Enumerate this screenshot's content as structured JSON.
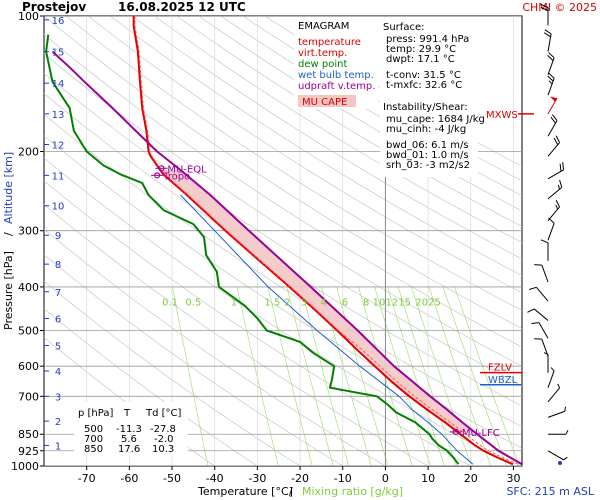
{
  "header": {
    "station": "Prostejov",
    "datetime": "16.08.2025 12 UTC",
    "credit": "CHMI © 2025"
  },
  "legend": {
    "title": "EMAGRAM",
    "items": [
      {
        "label": "temperature",
        "color": "#e00000"
      },
      {
        "label": "virt.temp.",
        "color": "#e00000"
      },
      {
        "label": "dew point",
        "color": "#008000"
      },
      {
        "label": "wet bulb temp.",
        "color": "#1f5fd0"
      },
      {
        "label": "udpraft v.temp.",
        "color": "#990099"
      }
    ],
    "cape_label": "MU CAPE",
    "cape_fill": "#f4c7c7"
  },
  "indices": {
    "surface_title": "Surface:",
    "press": "press: 991.4 hPa",
    "temp": "temp: 29.9 °C",
    "dwpt": "dwpt: 17.1 °C",
    "tconv": "t-conv: 31.5 °C",
    "tmxfc": "t-mxfc: 32.6 °C",
    "instability_title": "Instability/Shear:",
    "mu_cape": "mu_cape: 1684 J/kg",
    "mu_cinh": "mu_cinh: -4 J/kg",
    "bwd_06": "bwd_06: 6.1 m/s",
    "bwd_01": "bwd_01: 1.0 m/s",
    "srh_03": "srh_03: -3 m2/s2"
  },
  "table": {
    "headers": [
      "p [hPa]",
      "T",
      "Td [°C]"
    ],
    "rows": [
      [
        "500",
        "-11.3",
        "-27.8"
      ],
      [
        "700",
        "5.6",
        "-2.0"
      ],
      [
        "850",
        "17.6",
        "10.3"
      ]
    ]
  },
  "levels": {
    "tropo": "Tropo",
    "mu_eql": "MU-EQL",
    "mu_lfc": "MU-LFC",
    "fzlv": "FZLV",
    "wbzl": "WBZL",
    "mxws": "MXWS"
  },
  "axes": {
    "xlabel_temp": "Temperature [°C]",
    "xlabel_sep": "/",
    "xlabel_mix": "Mixing ratio [g/kg]",
    "ylabel_press": "Pressure [hPa]",
    "ylabel_sep": "/",
    "ylabel_alt": "Altitude [km]",
    "sfc": "SFC: 215 m ASL"
  },
  "chart_data": {
    "type": "line",
    "title": "EMAGRAM",
    "xlabel": "Temperature [°C] / Mixing ratio [g/kg]",
    "ylabel": "Pressure [hPa] / Altitude [km]",
    "xlim": [
      -80,
      32
    ],
    "ylim": [
      1000,
      100
    ],
    "y_scale": "log",
    "x_ticks": [
      -70,
      -60,
      -50,
      -40,
      -30,
      -20,
      -10,
      0,
      10,
      20,
      30
    ],
    "p_ticks": [
      100,
      200,
      300,
      400,
      500,
      600,
      700,
      850,
      925,
      1000
    ],
    "altitude_ticks_km": [
      1,
      2,
      3,
      4,
      5,
      6,
      7,
      8,
      9,
      10,
      11,
      12,
      13,
      14,
      15,
      16
    ],
    "altitude_pressures": [
      900,
      795,
      700,
      615,
      540,
      470,
      410,
      356,
      307,
      264,
      226,
      193,
      165,
      141,
      120,
      102
    ],
    "mixing_ratio_labels": [
      "0.1",
      "0.5",
      "1",
      "1.5",
      "2",
      "3",
      "4",
      "6",
      "8",
      "10",
      "12",
      "15",
      "20",
      "25"
    ],
    "mixing_ratio_label_temps": [
      -50.5,
      -45,
      -35.5,
      -26.5,
      -23,
      -19,
      -14.5,
      -9.5,
      -4.5,
      -1.5,
      1.5,
      4.5,
      8.5,
      11.5
    ],
    "mixing_ratio_label_pressure": 440,
    "series": [
      {
        "name": "temperature",
        "color": "#e00000",
        "points": [
          [
            991,
            29.9
          ],
          [
            960,
            26.5
          ],
          [
            925,
            23.0
          ],
          [
            900,
            21.0
          ],
          [
            850,
            17.6
          ],
          [
            800,
            14.0
          ],
          [
            750,
            9.8
          ],
          [
            700,
            5.6
          ],
          [
            650,
            1.5
          ],
          [
            600,
            -2.5
          ],
          [
            550,
            -6.8
          ],
          [
            500,
            -11.3
          ],
          [
            450,
            -16.5
          ],
          [
            400,
            -22.5
          ],
          [
            350,
            -29.5
          ],
          [
            300,
            -37.5
          ],
          [
            250,
            -46.5
          ],
          [
            225,
            -52.0
          ],
          [
            215,
            -53.5
          ],
          [
            205,
            -55.0
          ],
          [
            200,
            -55.5
          ],
          [
            180,
            -56.0
          ],
          [
            160,
            -57.0
          ],
          [
            140,
            -57.5
          ],
          [
            120,
            -58.0
          ],
          [
            105,
            -59.0
          ],
          [
            100,
            -59.0
          ]
        ]
      },
      {
        "name": "dew point",
        "color": "#008000",
        "points": [
          [
            991,
            17.1
          ],
          [
            960,
            16.0
          ],
          [
            925,
            14.5
          ],
          [
            900,
            12.5
          ],
          [
            870,
            11.0
          ],
          [
            850,
            10.3
          ],
          [
            800,
            7.0
          ],
          [
            760,
            2.5
          ],
          [
            730,
            0.5
          ],
          [
            700,
            -2.0
          ],
          [
            670,
            -13.0
          ],
          [
            640,
            -12.5
          ],
          [
            600,
            -12.0
          ],
          [
            560,
            -17.0
          ],
          [
            530,
            -20.0
          ],
          [
            500,
            -27.8
          ],
          [
            470,
            -30.0
          ],
          [
            440,
            -33.0
          ],
          [
            400,
            -39.0
          ],
          [
            370,
            -39.5
          ],
          [
            340,
            -42.0
          ],
          [
            310,
            -42.5
          ],
          [
            290,
            -45.0
          ],
          [
            270,
            -52.0
          ],
          [
            250,
            -55.5
          ],
          [
            235,
            -57.0
          ],
          [
            225,
            -62.0
          ],
          [
            215,
            -66.0
          ],
          [
            200,
            -70.0
          ],
          [
            180,
            -73.0
          ],
          [
            160,
            -74.0
          ],
          [
            140,
            -78.0
          ],
          [
            120,
            -79.5
          ],
          [
            110,
            -79.0
          ]
        ]
      },
      {
        "name": "wet bulb temp.",
        "color": "#1f5fd0",
        "points": [
          [
            991,
            20.5
          ],
          [
            925,
            16.8
          ],
          [
            850,
            13.2
          ],
          [
            800,
            10.0
          ],
          [
            750,
            6.3
          ],
          [
            700,
            3.2
          ],
          [
            600,
            -6.0
          ],
          [
            500,
            -16.0
          ],
          [
            400,
            -27.5
          ],
          [
            300,
            -40.0
          ],
          [
            250,
            -48.0
          ]
        ]
      },
      {
        "name": "udpraft v.temp.",
        "color": "#990099",
        "points": [
          [
            991,
            32.0
          ],
          [
            925,
            26.5
          ],
          [
            850,
            21.5
          ],
          [
            800,
            18.0
          ],
          [
            750,
            14.5
          ],
          [
            700,
            10.5
          ],
          [
            600,
            2.0
          ],
          [
            500,
            -6.5
          ],
          [
            400,
            -17.5
          ],
          [
            300,
            -32.0
          ],
          [
            250,
            -41.0
          ],
          [
            220,
            -48.0
          ],
          [
            200,
            -53.5
          ],
          [
            180,
            -58.5
          ],
          [
            160,
            -64.0
          ],
          [
            140,
            -70.5
          ],
          [
            130,
            -74.0
          ],
          [
            120,
            -78.0
          ]
        ]
      }
    ],
    "cape_layer": {
      "bottom_hpa": 840,
      "top_hpa": 220
    },
    "level_markers": [
      {
        "name": "MU-EQL",
        "p": 218,
        "t": -52.5
      },
      {
        "name": "Tropo",
        "p": 224,
        "t": -53.0
      },
      {
        "name": "MU-LFC",
        "p": 840,
        "t": 16.5
      },
      {
        "name": "FZLV",
        "p": 620
      },
      {
        "name": "WBZL",
        "p": 660
      },
      {
        "name": "MXWS",
        "p": 165
      }
    ],
    "wind_profile": [
      {
        "p": 105,
        "dir": 180,
        "kt": 20
      },
      {
        "p": 120,
        "dir": 190,
        "kt": 20
      },
      {
        "p": 135,
        "dir": 200,
        "kt": 20
      },
      {
        "p": 150,
        "dir": 200,
        "kt": 25
      },
      {
        "p": 165,
        "dir": 210,
        "kt": 50
      },
      {
        "p": 185,
        "dir": 210,
        "kt": 20
      },
      {
        "p": 205,
        "dir": 220,
        "kt": 20
      },
      {
        "p": 230,
        "dir": 240,
        "kt": 20
      },
      {
        "p": 255,
        "dir": 230,
        "kt": 15
      },
      {
        "p": 285,
        "dir": 220,
        "kt": 15
      },
      {
        "p": 315,
        "dir": 200,
        "kt": 10
      },
      {
        "p": 350,
        "dir": 180,
        "kt": 10
      },
      {
        "p": 390,
        "dir": 160,
        "kt": 10
      },
      {
        "p": 430,
        "dir": 140,
        "kt": 10
      },
      {
        "p": 475,
        "dir": 130,
        "kt": 10
      },
      {
        "p": 520,
        "dir": 150,
        "kt": 10
      },
      {
        "p": 570,
        "dir": 160,
        "kt": 10
      },
      {
        "p": 620,
        "dir": 180,
        "kt": 5
      },
      {
        "p": 670,
        "dir": 200,
        "kt": 5
      },
      {
        "p": 720,
        "dir": 220,
        "kt": 5
      },
      {
        "p": 780,
        "dir": 250,
        "kt": 5
      },
      {
        "p": 850,
        "dir": 270,
        "kt": 5
      },
      {
        "p": 925,
        "dir": 300,
        "kt": 5
      },
      {
        "p": 985,
        "dir": 0,
        "kt": 0
      }
    ]
  }
}
